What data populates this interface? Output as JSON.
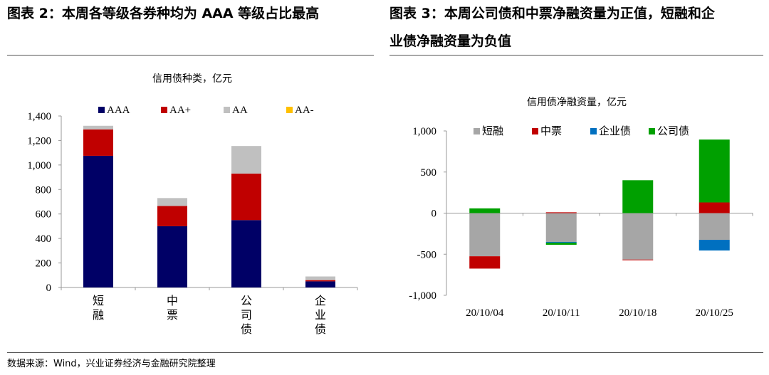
{
  "header": {
    "left_title": "图表 2：本周各等级各券种均为 AAA 等级占比最高",
    "right_title_line1": "图表 3：本周公司债和中票净融资量为正值，短融和企",
    "right_title_line2": "业债净融资量为负值"
  },
  "footer": {
    "source": "数据来源：Wind，兴业证券经济与金融研究院整理"
  },
  "colors": {
    "AAA": "#000066",
    "AA+": "#C00000",
    "AA": "#C0C0C0",
    "AA-": "#FFC000",
    "短融": "#A6A6A6",
    "中票": "#C00000",
    "企业债": "#0070C0",
    "公司债": "#00A000"
  },
  "chart_data": [
    {
      "type": "bar",
      "stacked": true,
      "title": "信用债种类，亿元",
      "categories": [
        "短融",
        "中票",
        "公司债",
        "企业债"
      ],
      "series": [
        {
          "name": "AAA",
          "values": [
            1075,
            500,
            550,
            50
          ]
        },
        {
          "name": "AA+",
          "values": [
            215,
            165,
            380,
            10
          ]
        },
        {
          "name": "AA",
          "values": [
            30,
            65,
            225,
            30
          ]
        },
        {
          "name": "AA-",
          "values": [
            0,
            0,
            0,
            0
          ]
        }
      ],
      "ylim": [
        0,
        1400
      ],
      "yticks": [
        0,
        200,
        400,
        600,
        800,
        1000,
        1200,
        1400
      ],
      "ytick_labels": [
        "0",
        "200",
        "400",
        "600",
        "800",
        "1,000",
        "1,200",
        "1,400"
      ],
      "legend": "top"
    },
    {
      "type": "bar",
      "stacked": true,
      "title": "信用债净融资量，亿元",
      "categories": [
        "20/10/04",
        "20/10/11",
        "20/10/18",
        "20/10/25"
      ],
      "series": [
        {
          "name": "短融",
          "values": [
            -525,
            -350,
            -565,
            -325
          ]
        },
        {
          "name": "中票",
          "values": [
            -150,
            10,
            -5,
            130
          ]
        },
        {
          "name": "企业债",
          "values": [
            0,
            -10,
            0,
            -130
          ]
        },
        {
          "name": "公司债",
          "values": [
            58,
            -25,
            400,
            765
          ]
        }
      ],
      "ylim": [
        -1000,
        1000
      ],
      "yticks": [
        -1000,
        -500,
        0,
        500,
        1000
      ],
      "ytick_labels": [
        "-1,000",
        "-500",
        "0",
        "500",
        "1,000"
      ],
      "legend": "top"
    }
  ]
}
